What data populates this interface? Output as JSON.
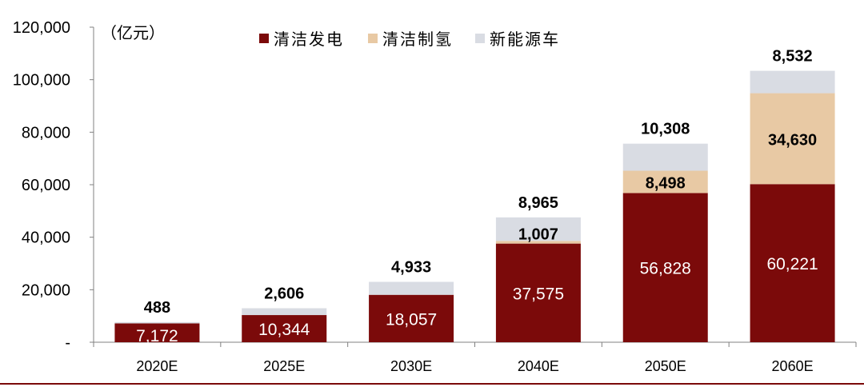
{
  "chart_data": {
    "type": "bar",
    "stacked": true,
    "unit_label": "（亿元）",
    "categories": [
      "2020E",
      "2025E",
      "2030E",
      "2040E",
      "2050E",
      "2060E"
    ],
    "ylim": [
      0,
      120000
    ],
    "yticks": [
      0,
      20000,
      40000,
      60000,
      80000,
      100000,
      120000
    ],
    "ytick_labels": [
      "-",
      "20,000",
      "40,000",
      "60,000",
      "80,000",
      "100,000",
      "120,000"
    ],
    "legend_position": "top",
    "grid": false,
    "series": [
      {
        "name": "清洁发电",
        "color": "#7B0A0A",
        "values": [
          7172,
          10344,
          18057,
          37575,
          56828,
          60221
        ],
        "labels": [
          "7,172",
          "10,344",
          "18,057",
          "37,575",
          "56,828",
          "60,221"
        ]
      },
      {
        "name": "清洁制氢",
        "color": "#E8C9A4",
        "values": [
          0,
          0,
          0,
          1007,
          8498,
          34630
        ],
        "labels": [
          "",
          "",
          "",
          "1,007",
          "8,498",
          "34,630"
        ]
      },
      {
        "name": "新能源车",
        "color": "#D9DCE3",
        "values": [
          488,
          2606,
          4933,
          8965,
          10308,
          8532
        ],
        "labels": [
          "488",
          "2,606",
          "4,933",
          "8,965",
          "10,308",
          "8,532"
        ]
      }
    ]
  }
}
